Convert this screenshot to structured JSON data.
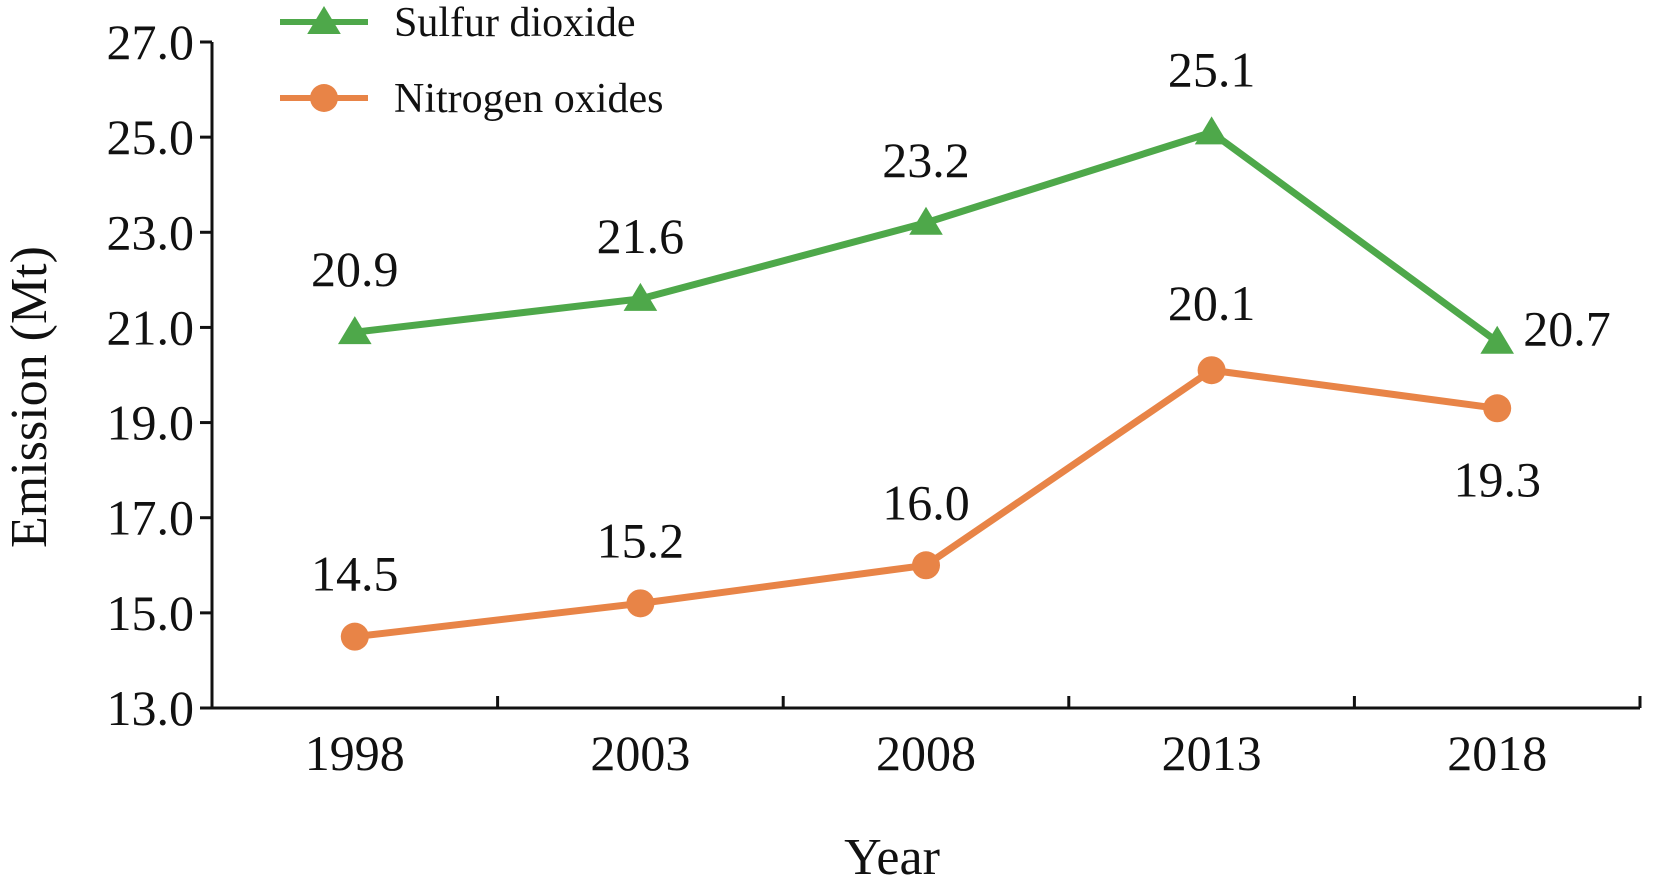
{
  "chart_data": {
    "type": "line",
    "categories": [
      "1998",
      "2003",
      "2008",
      "2013",
      "2018"
    ],
    "xlabel": "Year",
    "ylabel": "Emission (Mt)",
    "ylim": [
      13.0,
      27.0
    ],
    "yticks": [
      "13.0",
      "15.0",
      "17.0",
      "19.0",
      "21.0",
      "23.0",
      "25.0",
      "27.0"
    ],
    "legend_position": "top-left",
    "grid": false,
    "series": [
      {
        "name": "Sulfur dioxide",
        "values": [
          20.9,
          21.6,
          23.2,
          25.1,
          20.7
        ],
        "labels": [
          "20.9",
          "21.6",
          "23.2",
          "25.1",
          "20.7"
        ],
        "color": "#4ea84a",
        "marker": "triangle"
      },
      {
        "name": "Nitrogen oxides",
        "values": [
          14.5,
          15.2,
          16.0,
          20.1,
          19.3
        ],
        "labels": [
          "14.5",
          "15.2",
          "16.0",
          "20.1",
          "19.3"
        ],
        "color": "#e88447",
        "marker": "circle"
      }
    ]
  }
}
